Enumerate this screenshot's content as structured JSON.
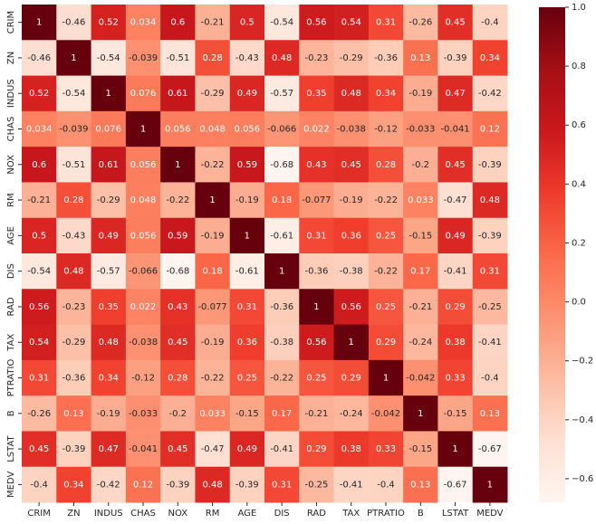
{
  "chart_data": {
    "type": "heatmap",
    "x": [
      "CRIM",
      "ZN",
      "INDUS",
      "CHAS",
      "NOX",
      "RM",
      "AGE",
      "DIS",
      "RAD",
      "TAX",
      "PTRATIO",
      "B",
      "LSTAT",
      "MEDV"
    ],
    "y": [
      "CRIM",
      "ZN",
      "INDUS",
      "CHAS",
      "NOX",
      "RM",
      "AGE",
      "DIS",
      "RAD",
      "TAX",
      "PTRATIO",
      "B",
      "LSTAT",
      "MEDV"
    ],
    "values": [
      [
        1,
        -0.46,
        0.52,
        0.034,
        0.6,
        -0.21,
        0.5,
        -0.54,
        0.56,
        0.54,
        0.31,
        -0.26,
        0.45,
        -0.4
      ],
      [
        -0.46,
        1,
        -0.54,
        -0.039,
        -0.51,
        0.28,
        -0.43,
        0.48,
        -0.23,
        -0.29,
        -0.36,
        0.13,
        -0.39,
        0.34
      ],
      [
        0.52,
        -0.54,
        1,
        0.076,
        0.61,
        -0.29,
        0.49,
        -0.57,
        0.35,
        0.48,
        0.34,
        -0.19,
        0.47,
        -0.42
      ],
      [
        0.034,
        -0.039,
        0.076,
        1,
        0.056,
        0.048,
        0.056,
        -0.066,
        0.022,
        -0.038,
        -0.12,
        -0.033,
        -0.041,
        0.12
      ],
      [
        0.6,
        -0.51,
        0.61,
        0.056,
        1,
        -0.22,
        0.59,
        -0.68,
        0.43,
        0.45,
        0.28,
        -0.2,
        0.45,
        -0.39
      ],
      [
        -0.21,
        0.28,
        -0.29,
        0.048,
        -0.22,
        1,
        -0.19,
        0.18,
        -0.077,
        -0.19,
        -0.22,
        0.033,
        -0.47,
        0.48
      ],
      [
        0.5,
        -0.43,
        0.49,
        0.056,
        0.59,
        -0.19,
        1,
        -0.61,
        0.31,
        0.36,
        0.25,
        -0.15,
        0.49,
        -0.39
      ],
      [
        -0.54,
        0.48,
        -0.57,
        -0.066,
        -0.68,
        0.18,
        -0.61,
        1,
        -0.36,
        -0.38,
        -0.22,
        0.17,
        -0.41,
        0.31
      ],
      [
        0.56,
        -0.23,
        0.35,
        0.022,
        0.43,
        -0.077,
        0.31,
        -0.36,
        1,
        0.56,
        0.25,
        -0.21,
        0.29,
        -0.25
      ],
      [
        0.54,
        -0.29,
        0.48,
        -0.038,
        0.45,
        -0.19,
        0.36,
        -0.38,
        0.56,
        1,
        0.29,
        -0.24,
        0.38,
        -0.41
      ],
      [
        0.31,
        -0.36,
        0.34,
        -0.12,
        0.28,
        -0.22,
        0.25,
        -0.22,
        0.25,
        0.29,
        1,
        -0.042,
        0.33,
        -0.4
      ],
      [
        -0.26,
        0.13,
        -0.19,
        -0.033,
        -0.2,
        0.033,
        -0.15,
        0.17,
        -0.21,
        -0.24,
        -0.042,
        1,
        -0.15,
        0.13
      ],
      [
        0.45,
        -0.39,
        0.47,
        -0.041,
        0.45,
        -0.47,
        0.49,
        -0.41,
        0.29,
        0.38,
        0.33,
        -0.15,
        1,
        -0.67
      ],
      [
        -0.4,
        0.34,
        -0.42,
        0.12,
        -0.39,
        0.48,
        -0.39,
        0.31,
        -0.25,
        -0.41,
        -0.4,
        0.13,
        -0.67,
        1
      ]
    ],
    "colormap": "Reds",
    "zlim": [
      -0.68,
      1
    ],
    "zticks": [
      {
        "value": 1,
        "label": "1.0"
      },
      0.8,
      0.6,
      0.4,
      0.2,
      {
        "value": 0,
        "label": "0.0"
      },
      {
        "value": -0.2,
        "label": "−0.2"
      },
      {
        "value": -0.4,
        "label": "−0.4"
      },
      {
        "value": -0.6,
        "label": "−0.6"
      }
    ]
  }
}
